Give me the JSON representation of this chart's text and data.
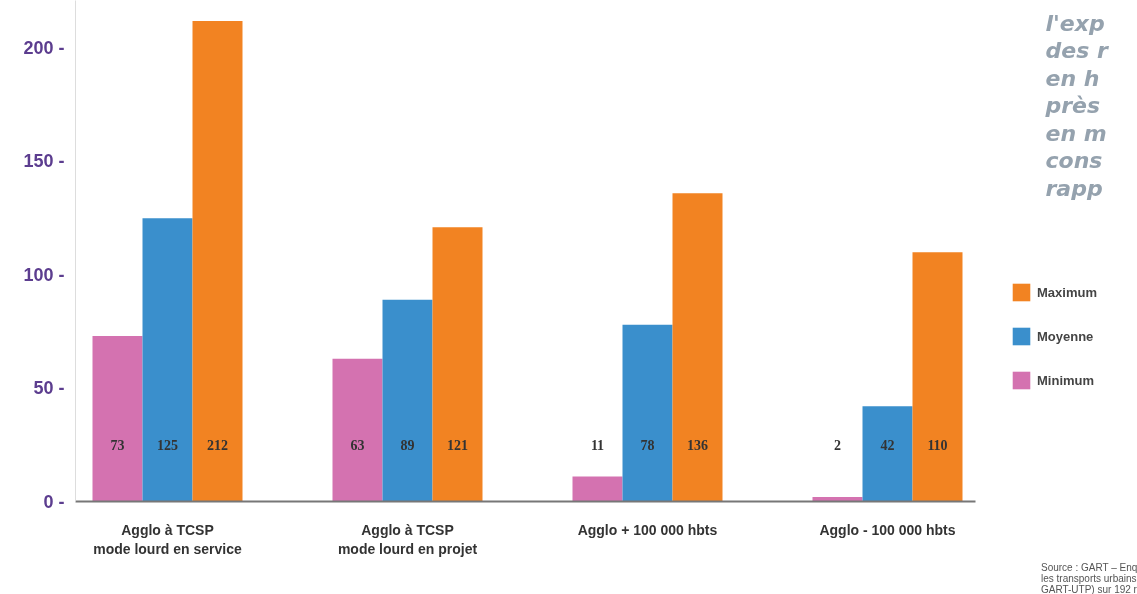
{
  "chart_data": {
    "type": "bar",
    "categories": [
      "Agglo à TCSP\nmode lourd en service",
      "Agglo à TCSP\nmode lourd en projet",
      "Agglo + 100 000 hbts",
      "Agglo - 100 000 hbts"
    ],
    "series": [
      {
        "name": "Minimum",
        "color": "#d472b0",
        "values": [
          73,
          63,
          11,
          2
        ]
      },
      {
        "name": "Moyenne",
        "color": "#3a8fcc",
        "values": [
          125,
          89,
          78,
          42
        ]
      },
      {
        "name": "Maximum",
        "color": "#f28322",
        "values": [
          212,
          121,
          136,
          110
        ]
      }
    ],
    "ylim": [
      0,
      221
    ],
    "yticks": [
      {
        "value": 0,
        "label": "0 -"
      },
      {
        "value": 50,
        "label": "50 -"
      },
      {
        "value": 100,
        "label": "100 -"
      },
      {
        "value": 150,
        "label": "150 -"
      },
      {
        "value": 200,
        "label": "200 -"
      }
    ],
    "data_labels": true,
    "legend": "right",
    "grid": false,
    "annotations": [
      "l'exp\ndes r\nen h\nprès\nen m\ncons\nrapp",
      "Source : GART – Enq\nles transports urbains\nGART-UTP) sur 192 r"
    ]
  }
}
